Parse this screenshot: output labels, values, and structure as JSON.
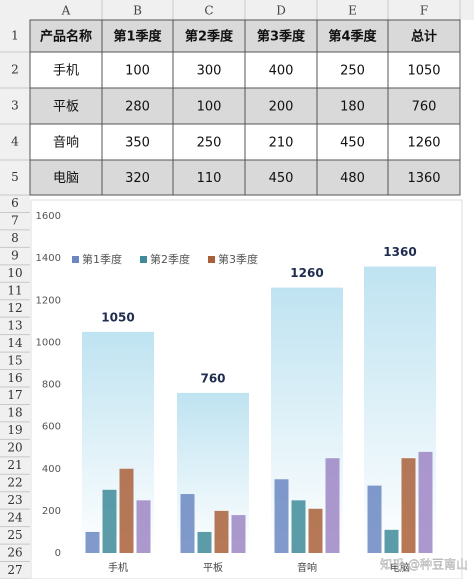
{
  "sheet": {
    "columns": [
      "A",
      "B",
      "C",
      "D",
      "E",
      "F"
    ],
    "row_numbers": [
      "1",
      "2",
      "3",
      "4",
      "5",
      "6",
      "7",
      "8",
      "9",
      "10",
      "11",
      "12",
      "13",
      "14",
      "15",
      "16",
      "17",
      "18",
      "19",
      "20",
      "21",
      "22",
      "23",
      "24",
      "25",
      "26",
      "27"
    ],
    "table": {
      "header": [
        "产品名称",
        "第1季度",
        "第2季度",
        "第3季度",
        "第4季度",
        "总计"
      ],
      "rows": [
        [
          "手机",
          100,
          300,
          400,
          250,
          1050
        ],
        [
          "平板",
          280,
          100,
          200,
          180,
          760
        ],
        [
          "音响",
          350,
          250,
          210,
          450,
          1260
        ],
        [
          "电脑",
          320,
          110,
          450,
          480,
          1360
        ]
      ]
    }
  },
  "chart_data": {
    "type": "bar",
    "categories": [
      "手机",
      "平板",
      "音响",
      "电脑"
    ],
    "series": [
      {
        "name": "第1季度",
        "color": "#6b87c2",
        "values": [
          100,
          280,
          350,
          320
        ]
      },
      {
        "name": "第2季度",
        "color": "#3f8b9a",
        "values": [
          300,
          100,
          250,
          110
        ]
      },
      {
        "name": "第3季度",
        "color": "#a9603a",
        "values": [
          400,
          200,
          210,
          450
        ]
      },
      {
        "color": "#9c86c4",
        "values": [
          250,
          180,
          450,
          480
        ]
      }
    ],
    "total_series": {
      "color": "#bfe3f1",
      "values": [
        1050,
        760,
        1260,
        1360
      ]
    },
    "ylim": [
      0,
      1600
    ],
    "yticks": [
      0,
      200,
      400,
      600,
      800,
      1000,
      1200,
      1400,
      1600
    ]
  },
  "watermark": "知乎 @种豆南山"
}
